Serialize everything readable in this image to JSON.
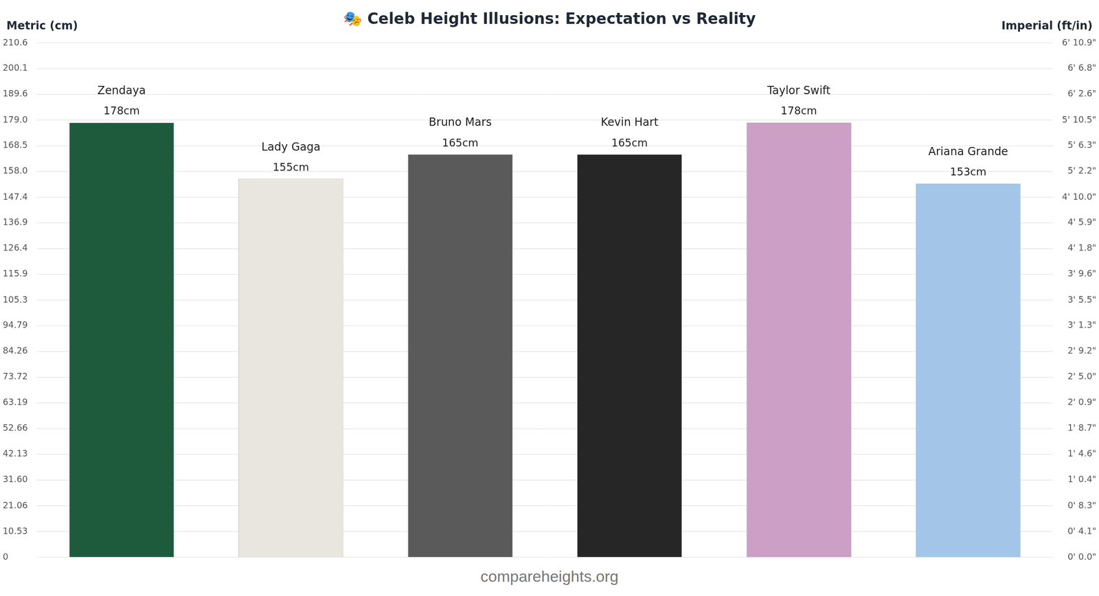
{
  "chart_data": {
    "type": "bar",
    "title": "🎭 Celeb Height Illusions: Expectation vs Reality",
    "y_label": "Metric (cm)",
    "y2_label": "Imperial (ft/in)",
    "annotations": [
      "compareheights.org"
    ],
    "categories": [
      "Zendaya",
      "Lady Gaga",
      "Bruno Mars",
      "Kevin Hart",
      "Taylor Swift",
      "Ariana Grande"
    ],
    "values": [
      178,
      155,
      165,
      165,
      178,
      153
    ],
    "value_labels": [
      "178cm",
      "155cm",
      "165cm",
      "165cm",
      "178cm",
      "153cm"
    ],
    "colors": [
      "#1e5b3c",
      "#e9e6df",
      "#5a5a5a",
      "#262626",
      "#cc9fc6",
      "#a3c6e8"
    ],
    "data_labels": true,
    "grid": true,
    "tick_labels": "y",
    "ylim": [
      0,
      210.6
    ],
    "yticks": [
      0,
      10.53,
      21.06,
      {
        "value": 31.6,
        "label": "31.60"
      },
      42.13,
      52.66,
      63.19,
      73.72,
      84.26,
      94.79,
      105.3,
      115.9,
      126.4,
      136.9,
      147.4,
      {
        "value": 158,
        "label": "158.0"
      },
      168.5,
      {
        "value": 179,
        "label": "179.0"
      },
      189.6,
      200.1,
      210.6
    ],
    "y2lim": [
      0,
      210.6
    ],
    "y2ticks": [
      {
        "value": 0,
        "label": "0' 0.0\""
      },
      {
        "value": 10.53,
        "label": "0' 4.1\""
      },
      {
        "value": 21.06,
        "label": "0' 8.3\""
      },
      {
        "value": 31.6,
        "label": "1' 0.4\""
      },
      {
        "value": 42.13,
        "label": "1' 4.6\""
      },
      {
        "value": 52.66,
        "label": "1' 8.7\""
      },
      {
        "value": 63.19,
        "label": "2' 0.9\""
      },
      {
        "value": 73.72,
        "label": "2' 5.0\""
      },
      {
        "value": 84.26,
        "label": "2' 9.2\""
      },
      {
        "value": 94.79,
        "label": "3' 1.3\""
      },
      {
        "value": 105.3,
        "label": "3' 5.5\""
      },
      {
        "value": 115.9,
        "label": "3' 9.6\""
      },
      {
        "value": 126.4,
        "label": "4' 1.8\""
      },
      {
        "value": 136.9,
        "label": "4' 5.9\""
      },
      {
        "value": 147.4,
        "label": "4' 10.0\""
      },
      {
        "value": 158,
        "label": "5' 2.2\""
      },
      {
        "value": 168.5,
        "label": "5' 6.3\""
      },
      {
        "value": 179,
        "label": "5' 10.5\""
      },
      {
        "value": 189.6,
        "label": "6' 2.6\""
      },
      {
        "value": 200.1,
        "label": "6' 6.8\""
      },
      {
        "value": 210.6,
        "label": "6' 10.9\""
      }
    ]
  }
}
